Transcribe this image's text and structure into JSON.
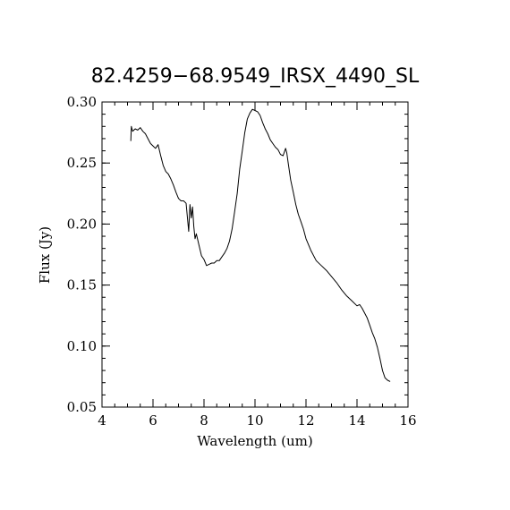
{
  "chart_data": {
    "type": "line",
    "title": "82.4259−68.9549_IRSX_4490_SL",
    "xlabel": "Wavelength (um)",
    "ylabel": "Flux (Jy)",
    "xlim": [
      4,
      16
    ],
    "ylim": [
      0.05,
      0.3
    ],
    "x_ticks": [
      4,
      6,
      8,
      10,
      12,
      14,
      16
    ],
    "x_tick_labels": [
      "4",
      "6",
      "8",
      "10",
      "12",
      "14",
      "16"
    ],
    "y_ticks": [
      0.05,
      0.1,
      0.15,
      0.2,
      0.25,
      0.3
    ],
    "y_tick_labels": [
      "0.05",
      "0.10",
      "0.15",
      "0.20",
      "0.25",
      "0.30"
    ],
    "x_minor_step": 0.5,
    "y_minor_step": 0.01,
    "grid": false,
    "series": [
      {
        "x": [
          5.13,
          5.15,
          5.2,
          5.3,
          5.4,
          5.5,
          5.6,
          5.7,
          5.8,
          5.9,
          6.0,
          6.1,
          6.2,
          6.3,
          6.4,
          6.5,
          6.6,
          6.7,
          6.8,
          6.9,
          7.0,
          7.1,
          7.2,
          7.3,
          7.4,
          7.45,
          7.5,
          7.55,
          7.6,
          7.65,
          7.7,
          7.8,
          7.9,
          8.0,
          8.1,
          8.2,
          8.3,
          8.4,
          8.5,
          8.6,
          8.7,
          8.8,
          8.9,
          9.0,
          9.1,
          9.2,
          9.3,
          9.4,
          9.5,
          9.6,
          9.7,
          9.8,
          9.9,
          10.0,
          10.1,
          10.2,
          10.3,
          10.4,
          10.5,
          10.6,
          10.7,
          10.8,
          10.9,
          11.0,
          11.1,
          11.2,
          11.25,
          11.3,
          11.4,
          11.5,
          11.6,
          11.7,
          11.8,
          11.9,
          12.0,
          12.2,
          12.4,
          12.6,
          12.8,
          13.0,
          13.2,
          13.4,
          13.6,
          13.8,
          14.0,
          14.1,
          14.2,
          14.4,
          14.5,
          14.6,
          14.7,
          14.8,
          14.9,
          15.0,
          15.1,
          15.2,
          15.3
        ],
        "values": [
          0.268,
          0.28,
          0.276,
          0.278,
          0.277,
          0.279,
          0.276,
          0.274,
          0.27,
          0.266,
          0.264,
          0.262,
          0.265,
          0.256,
          0.248,
          0.243,
          0.241,
          0.237,
          0.232,
          0.226,
          0.221,
          0.219,
          0.219,
          0.217,
          0.194,
          0.216,
          0.205,
          0.214,
          0.198,
          0.188,
          0.192,
          0.183,
          0.174,
          0.171,
          0.166,
          0.167,
          0.168,
          0.168,
          0.17,
          0.17,
          0.173,
          0.176,
          0.18,
          0.186,
          0.196,
          0.21,
          0.225,
          0.245,
          0.26,
          0.275,
          0.286,
          0.291,
          0.294,
          0.293,
          0.292,
          0.289,
          0.283,
          0.278,
          0.274,
          0.269,
          0.266,
          0.263,
          0.261,
          0.257,
          0.256,
          0.262,
          0.258,
          0.25,
          0.236,
          0.226,
          0.216,
          0.208,
          0.202,
          0.196,
          0.188,
          0.178,
          0.17,
          0.166,
          0.162,
          0.157,
          0.152,
          0.146,
          0.141,
          0.137,
          0.133,
          0.134,
          0.131,
          0.123,
          0.117,
          0.111,
          0.106,
          0.099,
          0.09,
          0.08,
          0.074,
          0.072,
          0.071
        ]
      }
    ]
  }
}
